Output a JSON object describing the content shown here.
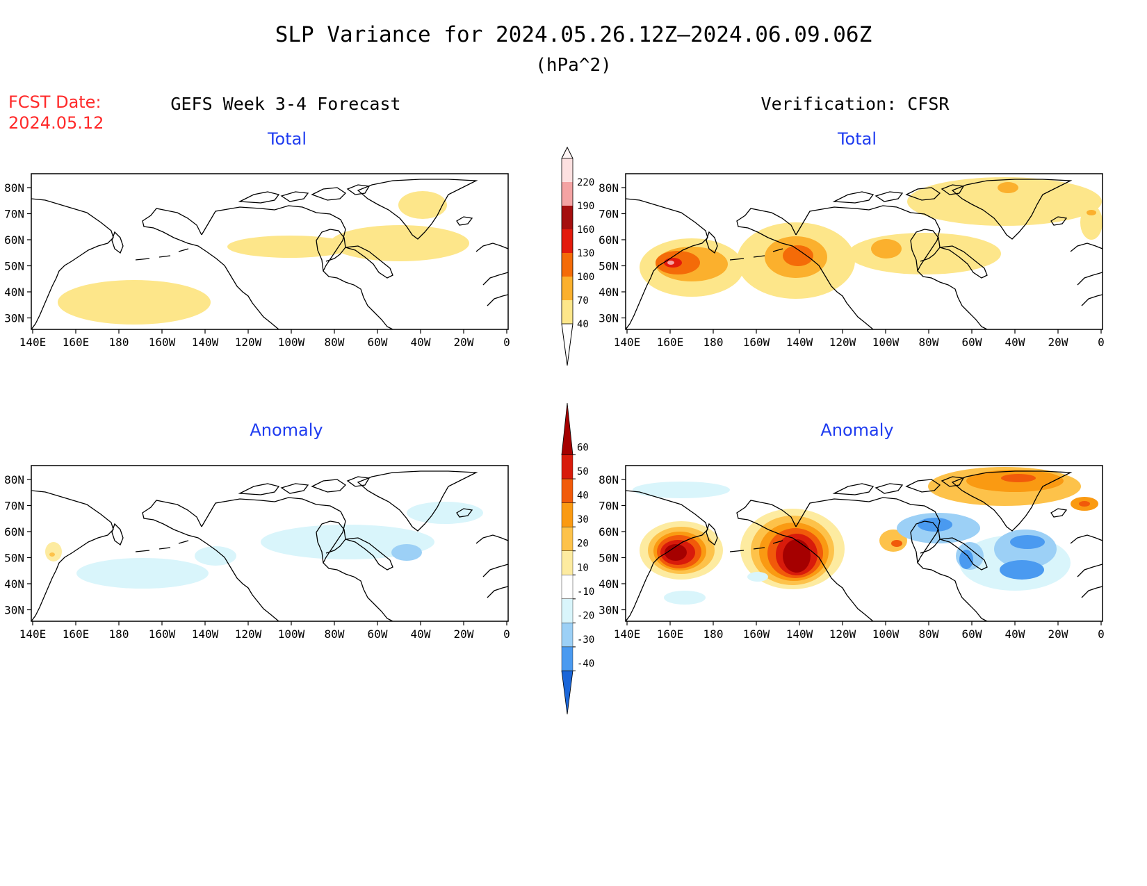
{
  "title": "SLP Variance for 2024.05.26.12Z–2024.06.09.06Z",
  "subtitle": "(hPa^2)",
  "forecast_date": {
    "label": "FCST Date:",
    "value": "2024.05.12"
  },
  "panels": {
    "forecast_header": "GEFS Week 3-4 Forecast",
    "verification_header": "Verification: CFSR",
    "fc_total_label": "Total",
    "vr_total_label": "Total",
    "fc_anom_label": "Anomaly",
    "vr_anom_label": "Anomaly"
  },
  "axes": {
    "lon_ticks": [
      "140E",
      "160E",
      "180",
      "160W",
      "140W",
      "120W",
      "100W",
      "80W",
      "60W",
      "40W",
      "20W",
      "0"
    ],
    "lat_ticks_total": [
      "80N",
      "70N",
      "60N",
      "50N",
      "40N",
      "30N"
    ],
    "lat_ticks_anomaly": [
      "80N",
      "70N",
      "60N",
      "50N",
      "40N",
      "30N"
    ]
  },
  "colorbars": {
    "total": {
      "levels": [
        "40",
        "70",
        "100",
        "130",
        "160",
        "190",
        "220"
      ],
      "colors": [
        "#fde68a",
        "#fbb02d",
        "#f46b08",
        "#e31a0c",
        "#a50f0f",
        "#f4a3a3",
        "#fde0e0"
      ]
    },
    "anomaly": {
      "levels": [
        "60",
        "50",
        "40",
        "30",
        "20",
        "10",
        "-10",
        "-20",
        "-30",
        "-40"
      ],
      "colors": [
        "#a50000",
        "#d81b0b",
        "#f15a0a",
        "#fa9a12",
        "#fdc24a",
        "#fdeba0",
        "#ffffff",
        "#d9f5fb",
        "#9cd0f6",
        "#4a9af0",
        "#1a66d9"
      ]
    }
  },
  "regions": {
    "fc_total": [
      {
        "cx": 148,
        "cy": 185,
        "rx": 110,
        "ry": 32,
        "level": 0
      },
      {
        "cx": 372,
        "cy": 105,
        "rx": 90,
        "ry": 16,
        "level": 0
      },
      {
        "cx": 530,
        "cy": 100,
        "rx": 100,
        "ry": 26,
        "level": 0
      },
      {
        "cx": 563,
        "cy": 45,
        "rx": 35,
        "ry": 20,
        "level": 0
      }
    ],
    "vr_total": [
      {
        "cx": 95,
        "cy": 135,
        "rx": 75,
        "ry": 42,
        "level": 0
      },
      {
        "cx": 95,
        "cy": 130,
        "rx": 52,
        "ry": 25,
        "level": 1
      },
      {
        "cx": 75,
        "cy": 128,
        "rx": 32,
        "ry": 17,
        "level": 2
      },
      {
        "cx": 68,
        "cy": 128,
        "rx": 13,
        "ry": 7,
        "level": 3
      },
      {
        "cx": 65,
        "cy": 128,
        "rx": 5,
        "ry": 3,
        "level": 5
      },
      {
        "cx": 245,
        "cy": 125,
        "rx": 85,
        "ry": 55,
        "level": 0
      },
      {
        "cx": 245,
        "cy": 120,
        "rx": 45,
        "ry": 30,
        "level": 1
      },
      {
        "cx": 248,
        "cy": 118,
        "rx": 22,
        "ry": 15,
        "level": 2
      },
      {
        "cx": 430,
        "cy": 115,
        "rx": 110,
        "ry": 30,
        "level": 0
      },
      {
        "cx": 375,
        "cy": 108,
        "rx": 22,
        "ry": 14,
        "level": 1
      },
      {
        "cx": 545,
        "cy": 40,
        "rx": 140,
        "ry": 35,
        "level": 0
      },
      {
        "cx": 550,
        "cy": 20,
        "rx": 15,
        "ry": 8,
        "level": 1
      },
      {
        "cx": 670,
        "cy": 70,
        "rx": 16,
        "ry": 25,
        "level": 0
      },
      {
        "cx": 670,
        "cy": 56,
        "rx": 7,
        "ry": 4,
        "level": 1
      }
    ],
    "fc_anom": [
      {
        "cx": 455,
        "cy": 110,
        "rx": 125,
        "ry": 25,
        "level": 7
      },
      {
        "cx": 595,
        "cy": 68,
        "rx": 55,
        "ry": 16,
        "level": 7
      },
      {
        "cx": 160,
        "cy": 155,
        "rx": 95,
        "ry": 22,
        "level": 7
      },
      {
        "cx": 265,
        "cy": 130,
        "rx": 30,
        "ry": 14,
        "level": 7
      },
      {
        "cx": 540,
        "cy": 125,
        "rx": 22,
        "ry": 12,
        "level": 8
      },
      {
        "cx": 32,
        "cy": 124,
        "rx": 12,
        "ry": 14,
        "level": 5
      },
      {
        "cx": 30,
        "cy": 128,
        "rx": 4,
        "ry": 3,
        "level": 4
      }
    ],
    "vr_anom": [
      {
        "cx": 80,
        "cy": 122,
        "rx": 60,
        "ry": 42,
        "level": 5
      },
      {
        "cx": 80,
        "cy": 122,
        "rx": 48,
        "ry": 34,
        "level": 4
      },
      {
        "cx": 78,
        "cy": 123,
        "rx": 38,
        "ry": 28,
        "level": 3
      },
      {
        "cx": 77,
        "cy": 124,
        "rx": 32,
        "ry": 24,
        "level": 2
      },
      {
        "cx": 75,
        "cy": 125,
        "rx": 25,
        "ry": 18,
        "level": 1
      },
      {
        "cx": 72,
        "cy": 125,
        "rx": 16,
        "ry": 12,
        "level": 0
      },
      {
        "cx": 240,
        "cy": 120,
        "rx": 75,
        "ry": 58,
        "level": 5
      },
      {
        "cx": 240,
        "cy": 122,
        "rx": 60,
        "ry": 50,
        "level": 4
      },
      {
        "cx": 242,
        "cy": 124,
        "rx": 50,
        "ry": 42,
        "level": 3
      },
      {
        "cx": 244,
        "cy": 126,
        "rx": 40,
        "ry": 36,
        "level": 2
      },
      {
        "cx": 246,
        "cy": 128,
        "rx": 30,
        "ry": 30,
        "level": 1
      },
      {
        "cx": 246,
        "cy": 130,
        "rx": 20,
        "ry": 24,
        "level": 0
      },
      {
        "cx": 545,
        "cy": 30,
        "rx": 110,
        "ry": 28,
        "level": 4
      },
      {
        "cx": 560,
        "cy": 22,
        "rx": 70,
        "ry": 16,
        "level": 3
      },
      {
        "cx": 565,
        "cy": 18,
        "rx": 25,
        "ry": 6,
        "level": 2
      },
      {
        "cx": 385,
        "cy": 108,
        "rx": 20,
        "ry": 16,
        "level": 4
      },
      {
        "cx": 390,
        "cy": 112,
        "rx": 8,
        "ry": 5,
        "level": 2
      },
      {
        "cx": 660,
        "cy": 55,
        "rx": 20,
        "ry": 10,
        "level": 3
      },
      {
        "cx": 660,
        "cy": 55,
        "rx": 8,
        "ry": 4,
        "level": 2
      },
      {
        "cx": 560,
        "cy": 140,
        "rx": 80,
        "ry": 40,
        "level": 7
      },
      {
        "cx": 575,
        "cy": 120,
        "rx": 45,
        "ry": 28,
        "level": 8
      },
      {
        "cx": 578,
        "cy": 110,
        "rx": 25,
        "ry": 10,
        "level": 9
      },
      {
        "cx": 570,
        "cy": 150,
        "rx": 32,
        "ry": 14,
        "level": 9
      },
      {
        "cx": 450,
        "cy": 90,
        "rx": 60,
        "ry": 22,
        "level": 8
      },
      {
        "cx": 445,
        "cy": 85,
        "rx": 25,
        "ry": 10,
        "level": 9
      },
      {
        "cx": 495,
        "cy": 130,
        "rx": 20,
        "ry": 20,
        "level": 8
      },
      {
        "cx": 490,
        "cy": 135,
        "rx": 10,
        "ry": 14,
        "level": 9
      },
      {
        "cx": 80,
        "cy": 35,
        "rx": 70,
        "ry": 12,
        "level": 7
      },
      {
        "cx": 85,
        "cy": 190,
        "rx": 30,
        "ry": 10,
        "level": 7
      },
      {
        "cx": 190,
        "cy": 160,
        "rx": 15,
        "ry": 7,
        "level": 7
      }
    ]
  }
}
